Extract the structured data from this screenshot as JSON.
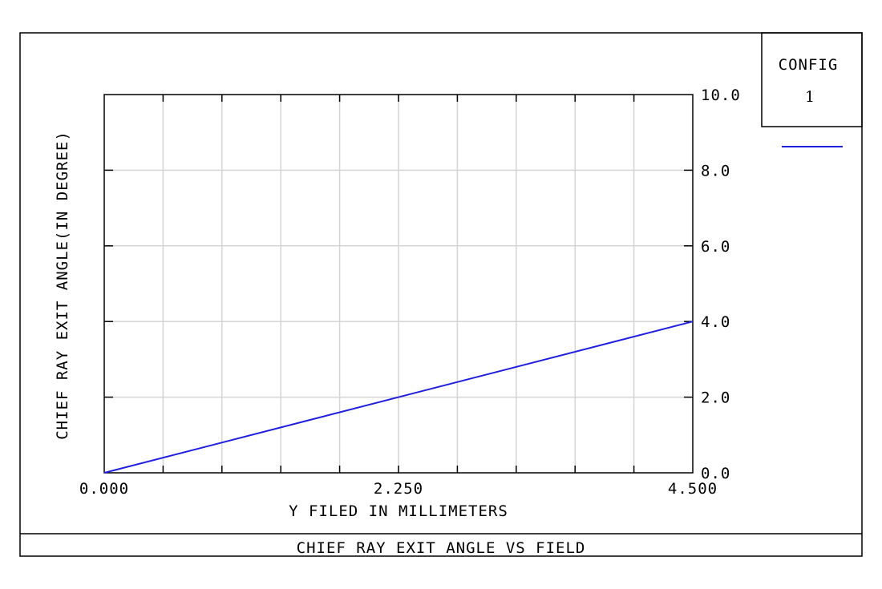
{
  "chart_data": {
    "type": "line",
    "title": "CHIEF RAY EXIT ANGLE VS FIELD",
    "xlabel": "Y FILED IN MILLIMETERS",
    "ylabel": "CHIEF RAY EXIT ANGLE(IN DEGREE)",
    "xlim": [
      0,
      4.5
    ],
    "ylim": [
      0,
      10
    ],
    "x_tick_labels": [
      "0.000",
      "2.250",
      "4.500"
    ],
    "y_tick_labels": [
      "0.0",
      "2.0",
      "4.0",
      "6.0",
      "8.0",
      "10.0"
    ],
    "grid": true,
    "legend_position": "top-right",
    "series": [
      {
        "name": "1",
        "color": "#1f1fe0",
        "x": [
          0,
          4.5
        ],
        "y": [
          0,
          4.0
        ]
      }
    ]
  },
  "legend": {
    "heading": "CONFIG",
    "entry": "1"
  }
}
